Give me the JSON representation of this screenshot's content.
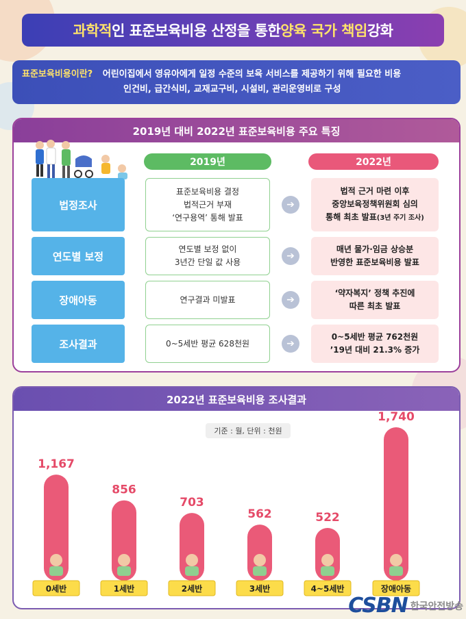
{
  "title": {
    "part1": "과학적",
    "part2": "인 표준보육비용 산정을 통한 ",
    "part3": "양육 국가 책임",
    "part4": " 강화"
  },
  "definition": {
    "label": "표준보육비용이란?",
    "line1": "어린이집에서 영유아에게 일정 수준의 보육 서비스를 제공하기 위해 필요한 비용",
    "line2": "인건비, 급간식비, 교재교구비, 시설비, 관리운영비로 구성"
  },
  "comparison": {
    "heading": "2019년 대비 2022년 표준보육비용 주요 특징",
    "col_2019": "2019년",
    "col_2022": "2022년",
    "rows": [
      {
        "label": "법정조사",
        "before": [
          "표준보육비용 결정",
          "법적근거 부재",
          "‘연구용역’ 통해 발표"
        ],
        "after": [
          "법적 근거 마련 이후",
          "중앙보육정책위원회 심의",
          "통해 최초 발표"
        ],
        "after_note": "(3년 주기 조사)"
      },
      {
        "label": "연도별 보정",
        "before": [
          "연도별 보정 없이",
          "3년간 단일 값 사용"
        ],
        "after": [
          "매년 물가·임금 상승분",
          "반영한 표준보육비용 발표"
        ]
      },
      {
        "label": "장애아동",
        "before": [
          "연구결과 미발표"
        ],
        "after": [
          "‘약자복지’ 정책 추진에",
          "따른 최초 발표"
        ]
      },
      {
        "label": "조사결과",
        "before": [
          "0~5세반 평균 628천원"
        ],
        "after": [
          "0~5세반 평균 762천원",
          "’19년 대비 21.3% 증가"
        ]
      }
    ]
  },
  "results": {
    "heading": "2022년 표준보육비용 조사결과",
    "basis": "기준 : 월, 단위 : 천원"
  },
  "chart_data": {
    "type": "bar",
    "categories": [
      "0세반",
      "1세반",
      "2세반",
      "3세반",
      "4~5세반",
      "장애아동"
    ],
    "values": [
      1167,
      856,
      703,
      562,
      522,
      1740
    ],
    "value_labels": [
      "1,167",
      "856",
      "703",
      "562",
      "522",
      "1,740"
    ],
    "unit": "천원",
    "title": "2022년 표준보육비용 조사결과"
  },
  "colors": {
    "bar": "#ea5a78",
    "value_text": "#e54a68",
    "label_box": "#fcdc4a"
  },
  "watermark": {
    "logo": "CSBN",
    "text": "한국안전방송"
  }
}
